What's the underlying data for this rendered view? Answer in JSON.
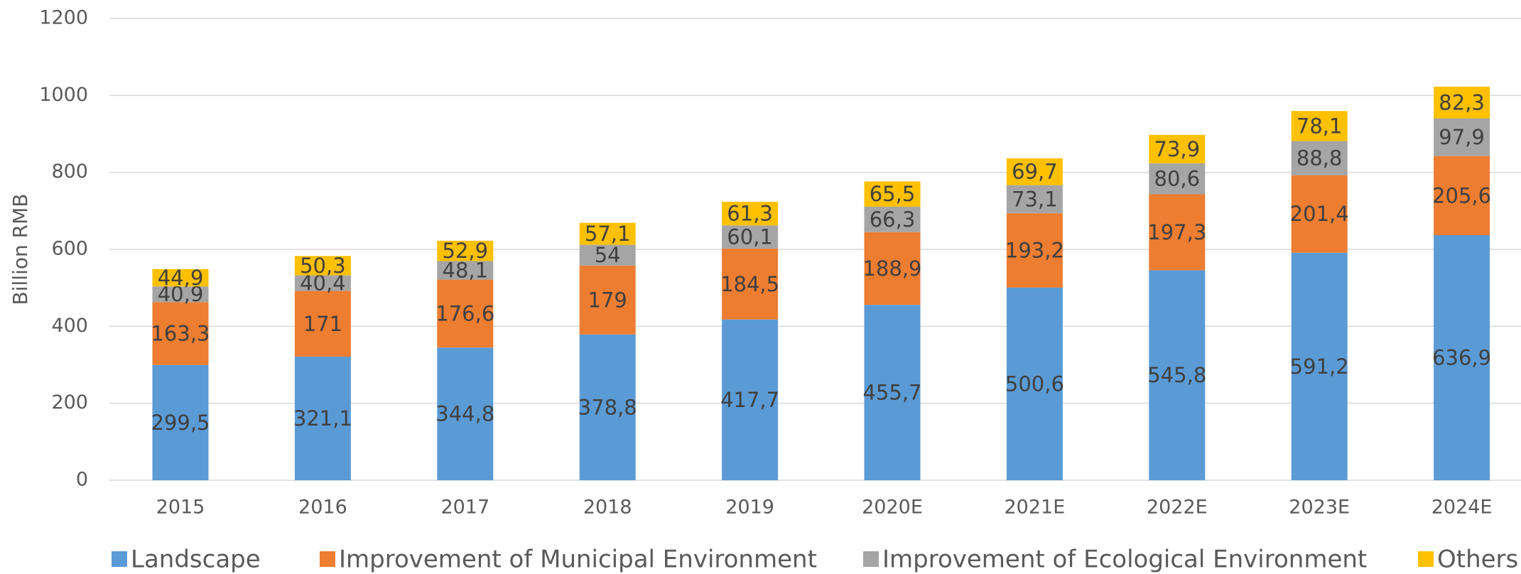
{
  "chart_data": {
    "type": "stacked_bar",
    "ylabel": "Billion RMB",
    "categories": [
      "2015",
      "2016",
      "2017",
      "2018",
      "2019",
      "2020E",
      "2021E",
      "2022E",
      "2023E",
      "2024E"
    ],
    "series": [
      {
        "name": "Landscape",
        "color": "#5b9bd5",
        "values": [
          299.5,
          321.1,
          344.8,
          378.8,
          417.7,
          455.7,
          500.6,
          545.8,
          591.2,
          636.9
        ],
        "value_labels": [
          "299,5",
          "321,1",
          "344,8",
          "378,8",
          "417,7",
          "455,7",
          "500,6",
          "545,8",
          "591,2",
          "636,9"
        ]
      },
      {
        "name": "Improvement of Municipal Environment",
        "color": "#ed7d31",
        "values": [
          163.3,
          171,
          176.6,
          179,
          184.5,
          188.9,
          193.2,
          197.3,
          201.4,
          205.6
        ],
        "value_labels": [
          "163,3",
          "171",
          "176,6",
          "179",
          "184,5",
          "188,9",
          "193,2",
          "197,3",
          "201,4",
          "205,6"
        ]
      },
      {
        "name": "Improvement of Ecological Environment",
        "color": "#a5a5a5",
        "values": [
          40.9,
          40.4,
          48.1,
          54,
          60.1,
          66.3,
          73.1,
          80.6,
          88.8,
          97.9
        ],
        "value_labels": [
          "40,9",
          "40,4",
          "48,1",
          "54",
          "60,1",
          "66,3",
          "73,1",
          "80,6",
          "88,8",
          "97,9"
        ]
      },
      {
        "name": "Others",
        "color": "#ffc000",
        "values": [
          44.9,
          50.3,
          52.9,
          57.1,
          61.3,
          65.5,
          69.7,
          73.9,
          78.1,
          82.3
        ],
        "value_labels": [
          "44,9",
          "50,3",
          "52,9",
          "57,1",
          "61,3",
          "65,5",
          "69,7",
          "73,9",
          "78,1",
          "82,3"
        ]
      }
    ],
    "ylim": [
      0,
      1200
    ],
    "yticks": [
      0,
      200,
      400,
      600,
      800,
      1000,
      1200
    ],
    "grid": true,
    "legend": "bottom"
  }
}
